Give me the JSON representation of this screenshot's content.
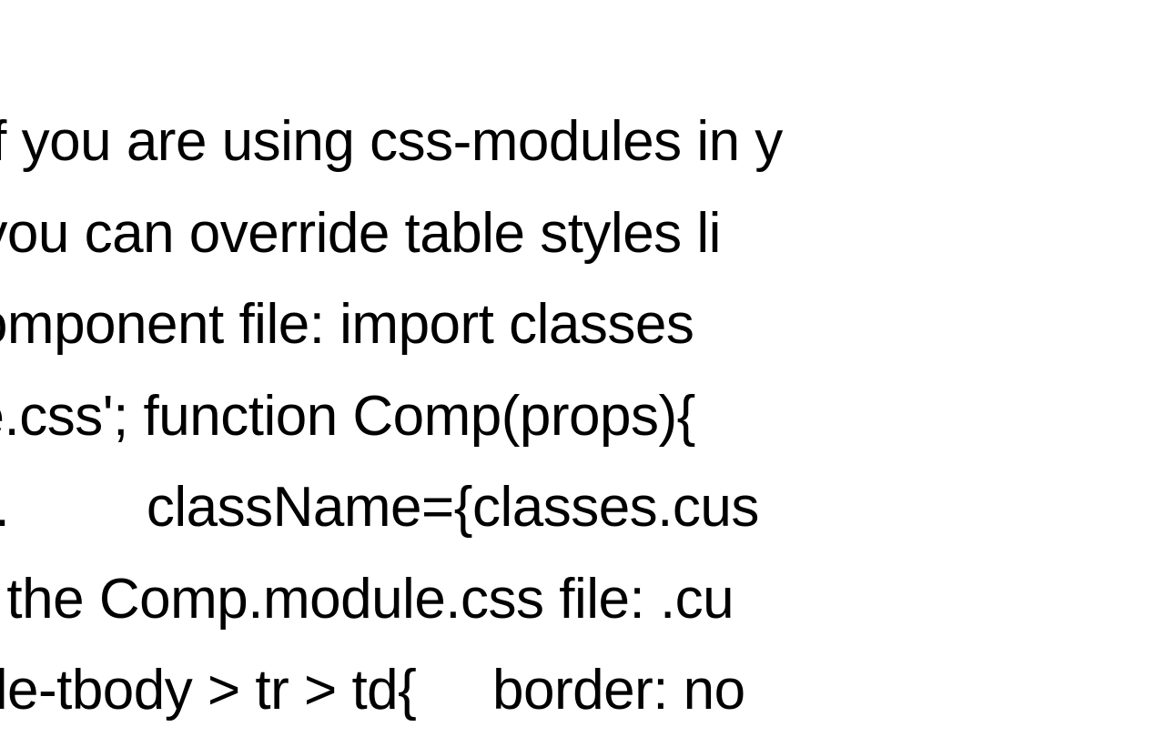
{
  "content": {
    "lines": [
      "    if you are using css-modules in y",
      "n, you can override table styles li",
      "  component file: import classes ",
      "lule.css'; function Comp(props){ ",
      "   ...         className={classes.cus",
      "  in the Comp.module.css file: .cu",
      "table-tbody > tr > td{     border: no"
    ],
    "text_color": "#000000",
    "background_color": "#ffffff",
    "font_size": 62,
    "line_height": 1.62,
    "font_family": "Arial, Helvetica, sans-serif"
  }
}
